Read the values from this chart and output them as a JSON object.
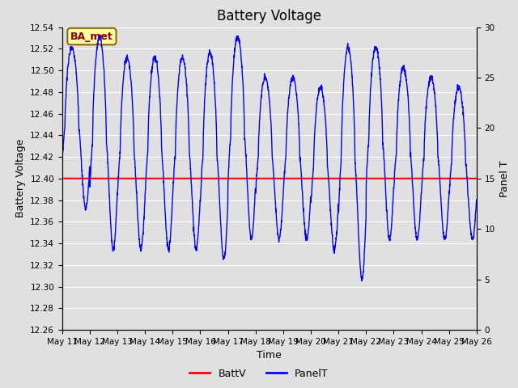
{
  "title": "Battery Voltage",
  "xlabel": "Time",
  "ylabel_left": "Battery Voltage",
  "ylabel_right": "Panel T",
  "annotation": "BA_met",
  "annotation_color": "#8B0000",
  "annotation_bg": "#FFFFA0",
  "annotation_border": "#8B6914",
  "batt_v_value": 12.4,
  "batt_color": "#FF0000",
  "panel_color": "#0000FF",
  "ylim_left": [
    12.26,
    12.54
  ],
  "ylim_right": [
    0,
    30
  ],
  "yticks_left": [
    12.26,
    12.28,
    12.3,
    12.32,
    12.34,
    12.36,
    12.38,
    12.4,
    12.42,
    12.44,
    12.46,
    12.48,
    12.5,
    12.52,
    12.54
  ],
  "yticks_right": [
    0,
    5,
    10,
    15,
    20,
    25,
    30
  ],
  "xtick_labels": [
    "May 11",
    "May 12",
    "May 13",
    "May 14",
    "May 15",
    "May 16",
    "May 17",
    "May 18",
    "May 19",
    "May 20",
    "May 21",
    "May 22",
    "May 23",
    "May 24",
    "May 25",
    "May 26"
  ],
  "bg_color": "#E0E0E0",
  "plot_bg_color": "#E0E0E0",
  "grid_color": "#FFFFFF",
  "legend_batt_label": "BattV",
  "legend_panel_label": "PanelT",
  "title_fontsize": 12,
  "axis_label_fontsize": 9,
  "figsize": [
    6.4,
    4.8
  ],
  "dpi": 100
}
